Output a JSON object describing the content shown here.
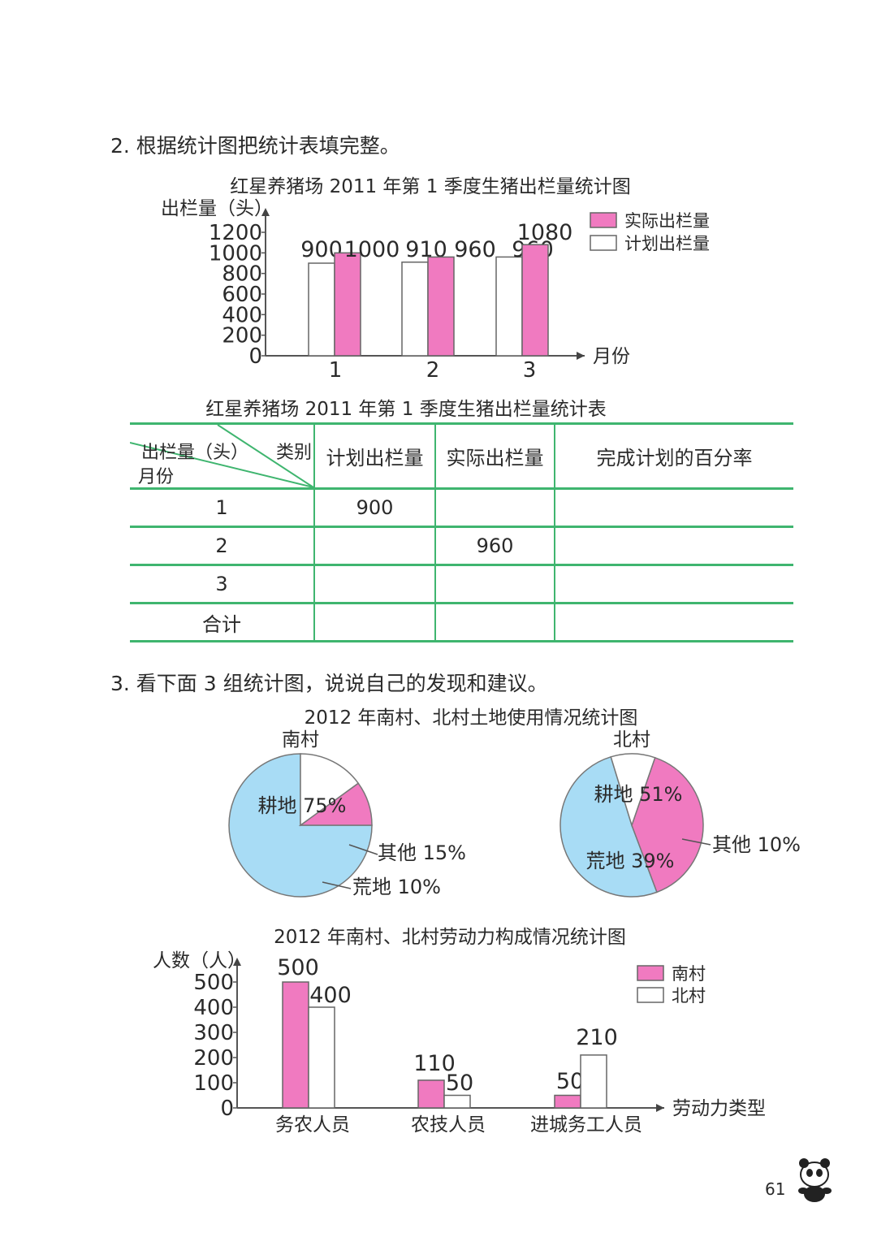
{
  "q2": {
    "instruction": "2. 根据统计图把统计表填完整。",
    "chart_title": "红星养猪场 2011 年第 1 季度生猪出栏量统计图",
    "table_title": "红星养猪场 2011 年第 1 季度生猪出栏量统计表",
    "table": {
      "corner_top_left": "出栏量（头）",
      "corner_top_right": "类别",
      "corner_bottom": "月份",
      "headers": [
        "计划出栏量",
        "实际出栏量",
        "完成计划的百分率"
      ],
      "rows": [
        {
          "month": "1",
          "plan": "900",
          "actual": "",
          "rate": ""
        },
        {
          "month": "2",
          "plan": "",
          "actual": "960",
          "rate": ""
        },
        {
          "month": "3",
          "plan": "",
          "actual": "",
          "rate": ""
        },
        {
          "month": "合计",
          "plan": "",
          "actual": "",
          "rate": ""
        }
      ]
    }
  },
  "q3": {
    "instruction": "3. 看下面 3 组统计图，说说自己的发现和建议。",
    "pie_title": "2012 年南村、北村土地使用情况统计图",
    "bar_title": "2012 年南村、北村劳动力构成情况统计图"
  },
  "page_number": "61",
  "chart_data": [
    {
      "type": "bar",
      "title": "红星养猪场 2011 年第 1 季度生猪出栏量统计图",
      "ylabel": "出栏量（头）",
      "xlabel": "月份",
      "categories": [
        "1",
        "2",
        "3"
      ],
      "yticks": [
        0,
        200,
        400,
        600,
        800,
        1000,
        1200
      ],
      "ylim": [
        0,
        1200
      ],
      "series": [
        {
          "name": "计划出栏量",
          "color": "#ffffff",
          "values": [
            900,
            910,
            960
          ],
          "labels": [
            "900",
            "910",
            "960"
          ]
        },
        {
          "name": "实际出栏量",
          "color": "#f07ac0",
          "values": [
            1000,
            960,
            1080
          ],
          "labels": [
            "1000",
            "960",
            "1080"
          ]
        }
      ],
      "legend": "top-right"
    },
    {
      "type": "pie",
      "title": "2012 年南村、北村土地使用情况统计图",
      "pies": [
        {
          "name": "南村",
          "slices": [
            {
              "label": "耕地",
              "pct": 75,
              "text": "75%",
              "color": "#a8dcf5"
            },
            {
              "label": "其他",
              "pct": 15,
              "text": "15%",
              "color": "#ffffff"
            },
            {
              "label": "荒地",
              "pct": 10,
              "text": "10%",
              "color": "#f07ac0"
            }
          ]
        },
        {
          "name": "北村",
          "slices": [
            {
              "label": "耕地",
              "pct": 51,
              "text": "51%",
              "color": "#a8dcf5"
            },
            {
              "label": "其他",
              "pct": 10,
              "text": "10%",
              "color": "#ffffff"
            },
            {
              "label": "荒地",
              "pct": 39,
              "text": "39%",
              "color": "#f07ac0"
            }
          ]
        }
      ]
    },
    {
      "type": "bar",
      "title": "2012 年南村、北村劳动力构成情况统计图",
      "ylabel": "人数（人）",
      "xlabel": "劳动力类型",
      "categories": [
        "务农人员",
        "农技人员",
        "进城务工人员"
      ],
      "yticks": [
        0,
        100,
        200,
        300,
        400,
        500
      ],
      "ylim": [
        0,
        500
      ],
      "series": [
        {
          "name": "南村",
          "color": "#f07ac0",
          "values": [
            500,
            110,
            50
          ],
          "labels": [
            "500",
            "110",
            "50"
          ]
        },
        {
          "name": "北村",
          "color": "#ffffff",
          "values": [
            400,
            50,
            210
          ],
          "labels": [
            "400",
            "50",
            "210"
          ]
        }
      ],
      "legend": "top-right"
    }
  ]
}
